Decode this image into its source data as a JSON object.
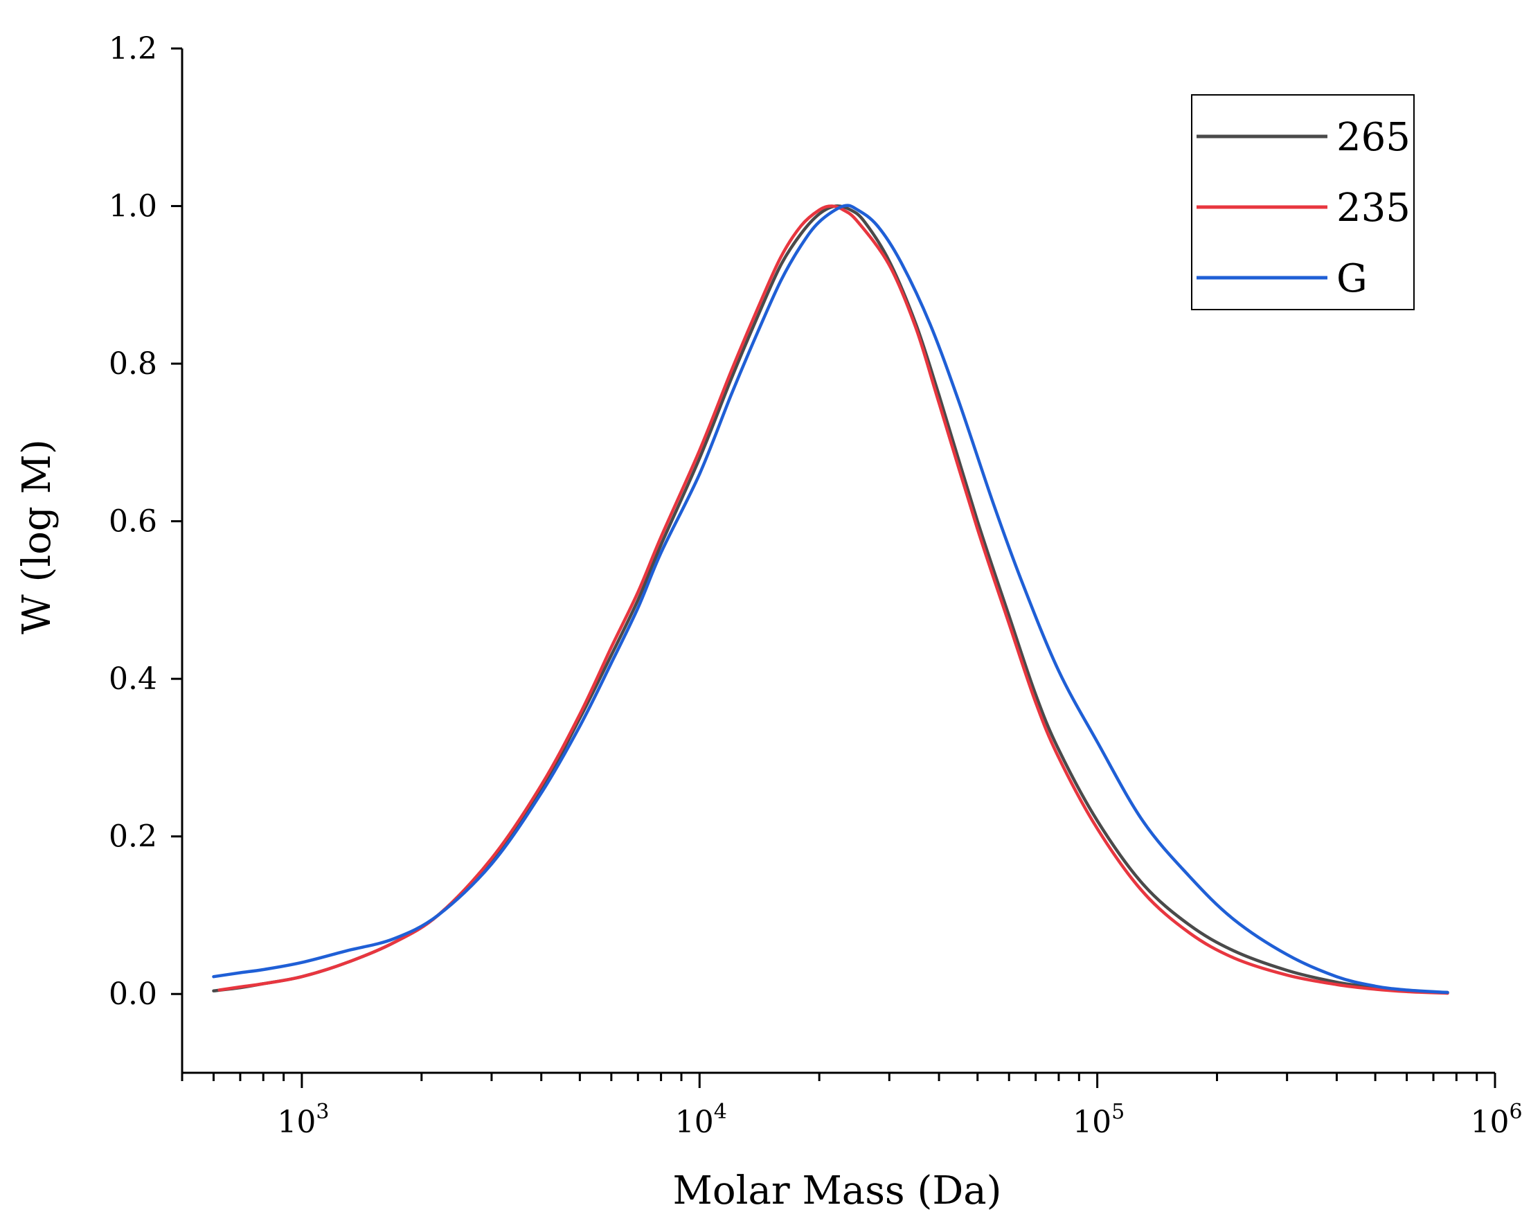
{
  "chart_data": {
    "type": "line",
    "title": "",
    "xlabel": "Molar Mass (Da)",
    "ylabel": "W (log M)",
    "xscale": "log",
    "xlim": [
      500,
      1000000
    ],
    "ylim": [
      -0.1,
      1.2
    ],
    "xticks": [
      {
        "value": 1000,
        "base": "10",
        "exp": "3"
      },
      {
        "value": 10000,
        "base": "10",
        "exp": "4"
      },
      {
        "value": 100000,
        "base": "10",
        "exp": "5"
      },
      {
        "value": 1000000,
        "base": "10",
        "exp": "6"
      }
    ],
    "yticks": [
      {
        "value": 0.0,
        "label": "0.0"
      },
      {
        "value": 0.2,
        "label": "0.2"
      },
      {
        "value": 0.4,
        "label": "0.4"
      },
      {
        "value": 0.6,
        "label": "0.6"
      },
      {
        "value": 0.8,
        "label": "0.8"
      },
      {
        "value": 1.0,
        "label": "1.0"
      },
      {
        "value": 1.2,
        "label": "1.2"
      }
    ],
    "grid": false,
    "legend_position": "top-right",
    "series": [
      {
        "name": "265",
        "color": "#4a4a4a",
        "points": [
          [
            600,
            0.004
          ],
          [
            700,
            0.008
          ],
          [
            800,
            0.013
          ],
          [
            1000,
            0.022
          ],
          [
            1300,
            0.04
          ],
          [
            1700,
            0.065
          ],
          [
            2200,
            0.1
          ],
          [
            3000,
            0.17
          ],
          [
            4000,
            0.26
          ],
          [
            5000,
            0.35
          ],
          [
            6000,
            0.43
          ],
          [
            7000,
            0.5
          ],
          [
            8000,
            0.57
          ],
          [
            10000,
            0.68
          ],
          [
            12000,
            0.78
          ],
          [
            14000,
            0.86
          ],
          [
            16000,
            0.925
          ],
          [
            18000,
            0.965
          ],
          [
            20000,
            0.99
          ],
          [
            22000,
            1.0
          ],
          [
            24000,
            0.995
          ],
          [
            26000,
            0.98
          ],
          [
            30000,
            0.93
          ],
          [
            35000,
            0.85
          ],
          [
            40000,
            0.76
          ],
          [
            50000,
            0.6
          ],
          [
            60000,
            0.48
          ],
          [
            70000,
            0.38
          ],
          [
            80000,
            0.31
          ],
          [
            100000,
            0.22
          ],
          [
            130000,
            0.14
          ],
          [
            170000,
            0.088
          ],
          [
            220000,
            0.055
          ],
          [
            300000,
            0.03
          ],
          [
            400000,
            0.015
          ],
          [
            500000,
            0.008
          ],
          [
            600000,
            0.004
          ],
          [
            760000,
            0.002
          ]
        ]
      },
      {
        "name": "235",
        "color": "#e8363f",
        "points": [
          [
            620,
            0.005
          ],
          [
            700,
            0.009
          ],
          [
            800,
            0.013
          ],
          [
            1000,
            0.022
          ],
          [
            1300,
            0.04
          ],
          [
            1700,
            0.065
          ],
          [
            2200,
            0.1
          ],
          [
            3000,
            0.172
          ],
          [
            4000,
            0.265
          ],
          [
            5000,
            0.355
          ],
          [
            6000,
            0.44
          ],
          [
            7000,
            0.51
          ],
          [
            8000,
            0.58
          ],
          [
            10000,
            0.69
          ],
          [
            12000,
            0.79
          ],
          [
            14000,
            0.87
          ],
          [
            16000,
            0.935
          ],
          [
            18000,
            0.975
          ],
          [
            20000,
            0.995
          ],
          [
            21500,
            1.0
          ],
          [
            23000,
            0.995
          ],
          [
            25000,
            0.98
          ],
          [
            30000,
            0.925
          ],
          [
            35000,
            0.845
          ],
          [
            40000,
            0.75
          ],
          [
            50000,
            0.59
          ],
          [
            60000,
            0.47
          ],
          [
            70000,
            0.37
          ],
          [
            80000,
            0.3
          ],
          [
            100000,
            0.21
          ],
          [
            130000,
            0.13
          ],
          [
            170000,
            0.078
          ],
          [
            220000,
            0.046
          ],
          [
            300000,
            0.024
          ],
          [
            400000,
            0.012
          ],
          [
            500000,
            0.006
          ],
          [
            600000,
            0.003
          ],
          [
            760000,
            0.001
          ]
        ]
      },
      {
        "name": "G",
        "color": "#1f5fd6",
        "points": [
          [
            600,
            0.022
          ],
          [
            700,
            0.027
          ],
          [
            800,
            0.031
          ],
          [
            1000,
            0.04
          ],
          [
            1300,
            0.055
          ],
          [
            1700,
            0.07
          ],
          [
            2200,
            0.1
          ],
          [
            3000,
            0.165
          ],
          [
            4000,
            0.255
          ],
          [
            5000,
            0.34
          ],
          [
            6000,
            0.42
          ],
          [
            7000,
            0.49
          ],
          [
            8000,
            0.56
          ],
          [
            10000,
            0.66
          ],
          [
            12000,
            0.76
          ],
          [
            14000,
            0.84
          ],
          [
            16000,
            0.905
          ],
          [
            18000,
            0.95
          ],
          [
            20000,
            0.98
          ],
          [
            23000,
            1.0
          ],
          [
            25000,
            0.995
          ],
          [
            28000,
            0.975
          ],
          [
            32000,
            0.93
          ],
          [
            38000,
            0.85
          ],
          [
            45000,
            0.75
          ],
          [
            55000,
            0.62
          ],
          [
            65000,
            0.52
          ],
          [
            80000,
            0.41
          ],
          [
            100000,
            0.32
          ],
          [
            130000,
            0.22
          ],
          [
            170000,
            0.15
          ],
          [
            220000,
            0.095
          ],
          [
            300000,
            0.05
          ],
          [
            400000,
            0.022
          ],
          [
            500000,
            0.01
          ],
          [
            600000,
            0.005
          ],
          [
            760000,
            0.002
          ]
        ]
      }
    ]
  }
}
